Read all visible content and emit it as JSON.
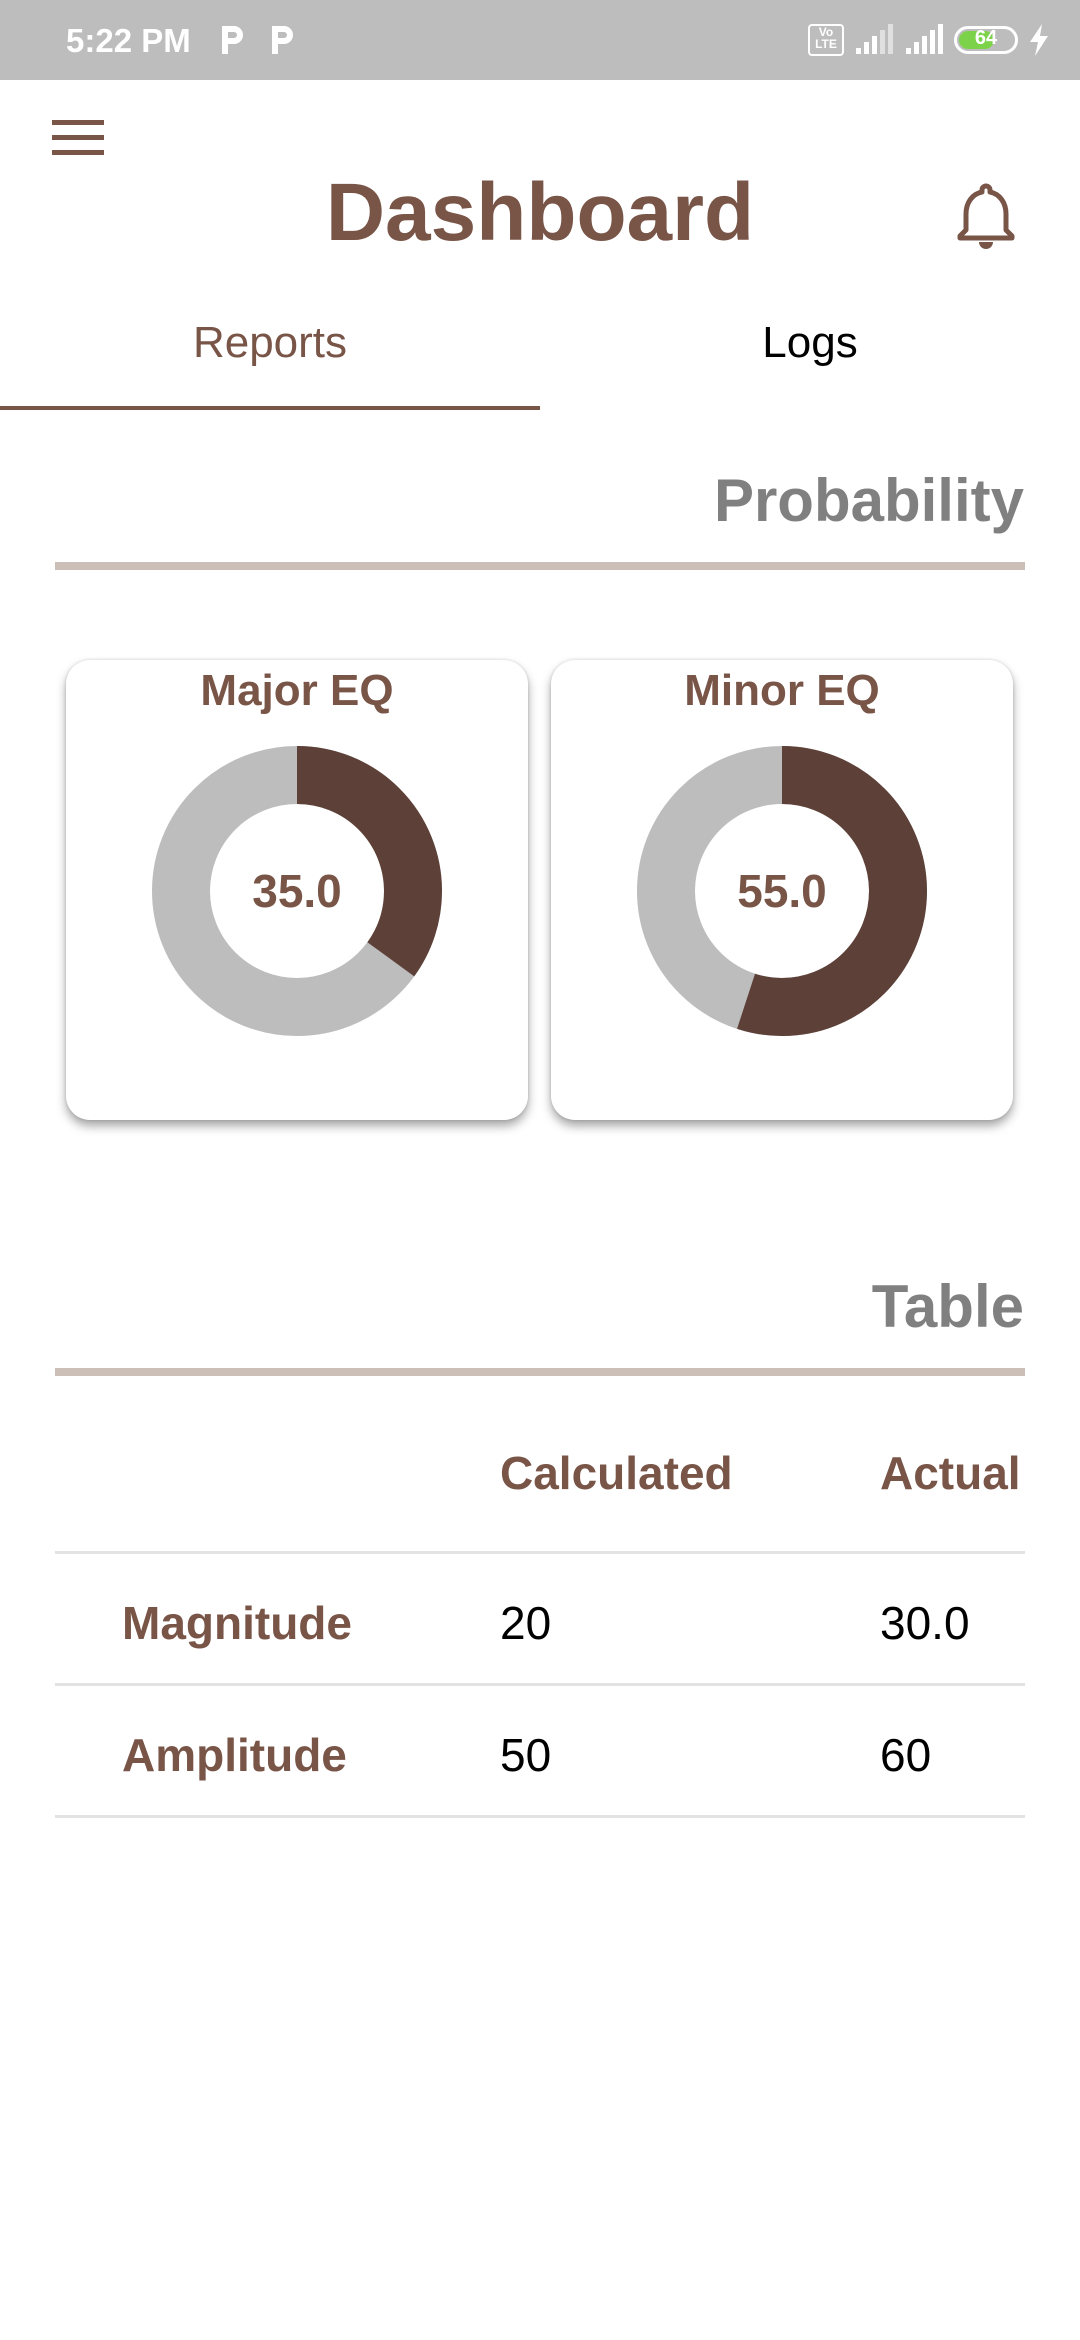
{
  "status_bar": {
    "time": "5:22 PM",
    "notification_icons": [
      "parking-icon",
      "parking-icon"
    ],
    "volte_label": "Vo LTE",
    "battery_level": "64",
    "battery_fill_fraction": 0.64
  },
  "header": {
    "title": "Dashboard",
    "menu_icon": "hamburger-menu-icon",
    "notification_icon": "bell-icon"
  },
  "tabs": [
    {
      "label": "Reports",
      "selected": true
    },
    {
      "label": "Logs",
      "selected": false
    }
  ],
  "probability": {
    "title": "Probability",
    "cards": [
      {
        "title": "Major EQ",
        "value": "35.0",
        "fraction": 0.35
      },
      {
        "title": "Minor EQ",
        "value": "55.0",
        "fraction": 0.55
      }
    ]
  },
  "table": {
    "title": "Table",
    "columns": [
      "",
      "Calculated",
      "Actual"
    ],
    "rows": [
      {
        "label": "Magnitude",
        "calculated": "20",
        "actual": "30.0"
      },
      {
        "label": "Amplitude",
        "calculated": "50",
        "actual": "60"
      }
    ]
  },
  "colors": {
    "accent": "#795548",
    "donut_filled": "#5d4037",
    "donut_empty": "#bdbdbd",
    "section_title": "#808080",
    "divider": "#cbbfb8"
  }
}
